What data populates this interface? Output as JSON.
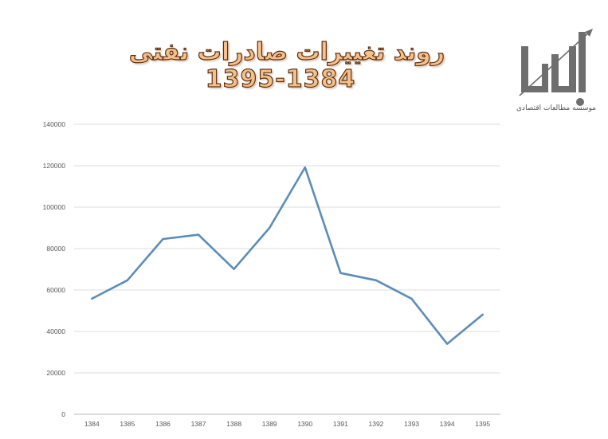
{
  "title": {
    "line1": "روند تغییرات صادرات نفتی",
    "line2": "1395-1384",
    "fill_color": "#f5c08a",
    "stroke_color": "#5a2e10"
  },
  "logo": {
    "icon": "bamdad-logo-icon",
    "caption": "موسسه مطالعات اقتصادی",
    "color": "#6b6b6b"
  },
  "chart_data": {
    "type": "line",
    "title": "روند تغییرات صادرات نفتی 1395-1384",
    "xlabel": "",
    "ylabel": "",
    "categories": [
      "1384",
      "1385",
      "1386",
      "1387",
      "1388",
      "1389",
      "1390",
      "1391",
      "1392",
      "1393",
      "1394",
      "1395"
    ],
    "series": [
      {
        "name": "صادرات نفتی",
        "color": "#5b8db8",
        "values": [
          55800,
          64700,
          84600,
          86700,
          70100,
          90000,
          119200,
          68200,
          64700,
          55800,
          34000,
          48100
        ]
      }
    ],
    "ylim": [
      0,
      140000
    ],
    "yticks": [
      "0",
      "20000",
      "40000",
      "60000",
      "80000",
      "100000",
      "120000",
      "140000"
    ],
    "grid": true,
    "legend": "none"
  }
}
